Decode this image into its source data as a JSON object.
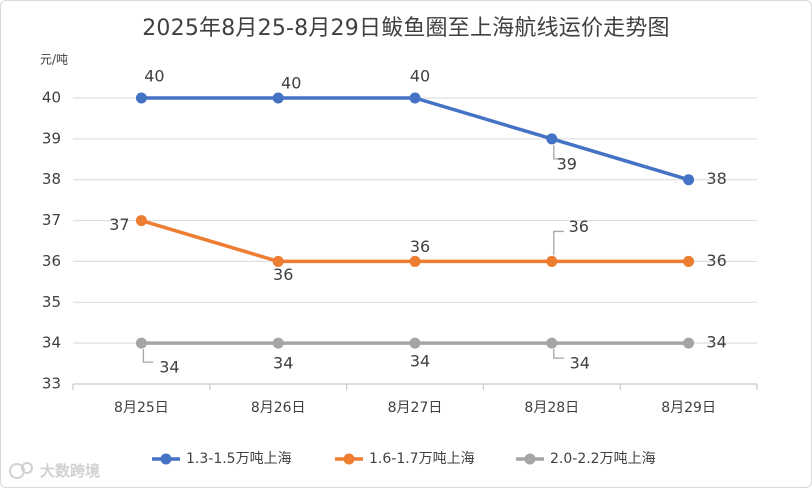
{
  "chart_data": {
    "type": "line",
    "title": "2025年8月25-8月29日鲅鱼圈至上海航线运价走势图",
    "ylabel": "元/吨",
    "xlabel": "",
    "categories": [
      "8月25日",
      "8月26日",
      "8月27日",
      "8月28日",
      "8月29日"
    ],
    "ylim": [
      33,
      40
    ],
    "yticks": [
      33,
      34,
      35,
      36,
      37,
      38,
      39,
      40
    ],
    "grid": true,
    "legend_position": "bottom",
    "series": [
      {
        "name": "1.3-1.5万吨上海",
        "color": "#4472C4",
        "values": [
          40,
          40,
          40,
          39,
          38
        ]
      },
      {
        "name": "1.6-1.7万吨上海",
        "color": "#ED7D31",
        "values": [
          37,
          36,
          36,
          36,
          36
        ]
      },
      {
        "name": "2.0-2.2万吨上海",
        "color": "#A5A5A5",
        "values": [
          34,
          34,
          34,
          34,
          34
        ]
      }
    ]
  },
  "watermark": "大数跨境"
}
